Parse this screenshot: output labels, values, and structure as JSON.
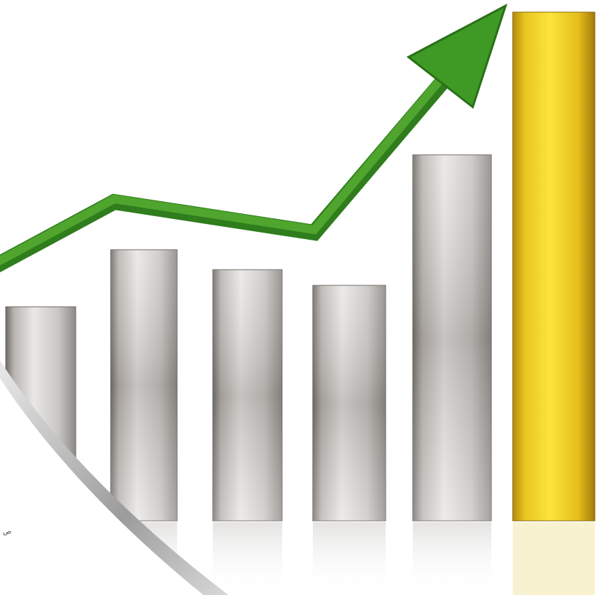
{
  "caption_fragment": "ص"
}
